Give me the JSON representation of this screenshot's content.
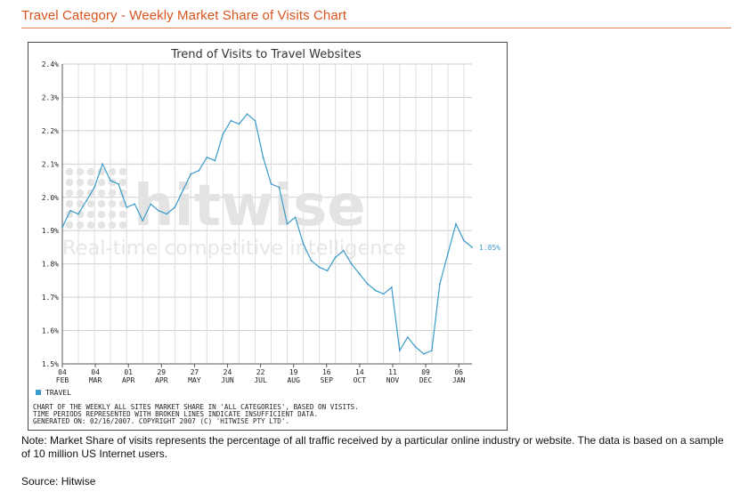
{
  "page": {
    "title": "Travel Category - Weekly Market Share of Visits Chart",
    "note": "Note: Market Share of visits represents the percentage of all traffic received by a particular online industry or website. The data is based on a sample of 10 million US Internet users.",
    "source": "Source: Hitwise",
    "accent_color": "#d9531e"
  },
  "chart_data": {
    "type": "line",
    "title": "Trend of Visits to Travel Websites",
    "y_tick_labels": [
      "1.5%",
      "1.6%",
      "1.7%",
      "1.8%",
      "1.9%",
      "2.0%",
      "2.1%",
      "2.2%",
      "2.3%",
      "2.4%"
    ],
    "ylim": [
      1.5,
      2.4
    ],
    "x_ticks": [
      {
        "day": "04",
        "month": "FEB"
      },
      {
        "day": "04",
        "month": "MAR"
      },
      {
        "day": "01",
        "month": "APR"
      },
      {
        "day": "29",
        "month": "APR"
      },
      {
        "day": "27",
        "month": "MAY"
      },
      {
        "day": "24",
        "month": "JUN"
      },
      {
        "day": "22",
        "month": "JUL"
      },
      {
        "day": "19",
        "month": "AUG"
      },
      {
        "day": "16",
        "month": "SEP"
      },
      {
        "day": "14",
        "month": "OCT"
      },
      {
        "day": "11",
        "month": "NOV"
      },
      {
        "day": "09",
        "month": "DEC"
      },
      {
        "day": "06",
        "month": "JAN"
      }
    ],
    "grid": true,
    "legend_position": "bottom-left",
    "series": [
      {
        "name": "TRAVEL",
        "color": "#3a9bc9",
        "end_label": "1.85%",
        "values": [
          1.91,
          1.96,
          1.95,
          1.99,
          2.03,
          2.1,
          2.05,
          2.04,
          1.97,
          1.98,
          1.93,
          1.98,
          1.96,
          1.95,
          1.97,
          2.02,
          2.07,
          2.08,
          2.12,
          2.11,
          2.19,
          2.23,
          2.22,
          2.25,
          2.23,
          2.12,
          2.04,
          2.03,
          1.92,
          1.94,
          1.86,
          1.81,
          1.79,
          1.78,
          1.82,
          1.84,
          1.8,
          1.77,
          1.74,
          1.72,
          1.71,
          1.73,
          1.54,
          1.58,
          1.55,
          1.53,
          1.54,
          1.74,
          1.83,
          1.92,
          1.87,
          1.85
        ]
      }
    ],
    "footnote": [
      "CHART OF THE WEEKLY ALL SITES MARKET SHARE IN 'ALL CATEGORIES', BASED ON VISITS.",
      "TIME PERIODS REPRESENTED WITH BROKEN LINES INDICATE INSUFFICIENT DATA.",
      "GENERATED ON: 02/16/2007. COPYRIGHT 2007 (C) 'HITWISE PTY LTD'."
    ],
    "watermark": {
      "logo": "hitwise",
      "tagline": "Real-time competitive intelligence"
    }
  }
}
